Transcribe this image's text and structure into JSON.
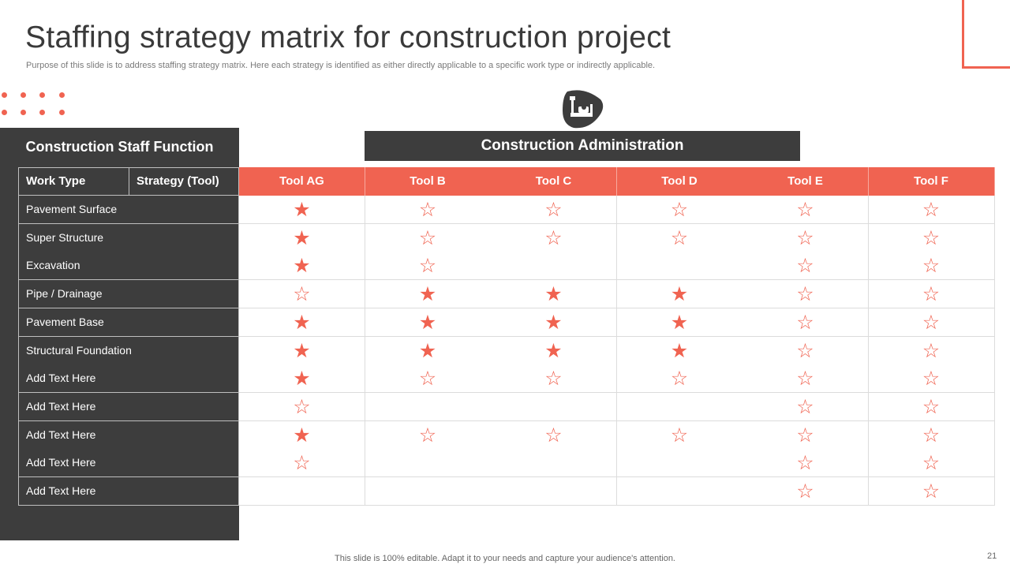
{
  "slide": {
    "title": "Staffing strategy matrix for construction project",
    "subtitle": "Purpose of this slide is to address staffing strategy matrix. Here each strategy is identified as either directly applicable to a specific work type  or indirectly applicable.",
    "footer": "This slide is 100% editable. Adapt it to your needs and capture your audience's attention.",
    "page_number": "21",
    "accent_color": "#f06351",
    "dark_color": "#3d3d3d"
  },
  "panel": {
    "title": "Construction Staff Function",
    "admin_title": "Construction  Administration",
    "logo_icon": "construction-tools-icon"
  },
  "matrix": {
    "col_work_type": "Work Type",
    "col_strategy": "Strategy (Tool)",
    "tools": [
      "Tool AG",
      "Tool B",
      "Tool C",
      "Tool D",
      "Tool E",
      "Tool F"
    ],
    "legend_marks": {
      "filled": "directly applicable",
      "outline": "indirectly applicable"
    },
    "rows": [
      {
        "label": "Pavement Surface",
        "marks": [
          "filled",
          "outline",
          "outline",
          "outline",
          "outline",
          "outline"
        ]
      },
      {
        "label": "Super Structure",
        "marks": [
          "filled",
          "outline",
          "outline",
          "outline",
          "outline",
          "outline"
        ]
      },
      {
        "label": "Excavation",
        "marks": [
          "filled",
          "outline",
          "none",
          "none",
          "outline",
          "outline"
        ]
      },
      {
        "label": "Pipe / Drainage",
        "marks": [
          "outline",
          "filled",
          "filled",
          "filled",
          "outline",
          "outline"
        ]
      },
      {
        "label": "Pavement Base",
        "marks": [
          "filled",
          "filled",
          "filled",
          "filled",
          "outline",
          "outline"
        ]
      },
      {
        "label": "Structural Foundation",
        "marks": [
          "filled",
          "filled",
          "filled",
          "filled",
          "outline",
          "outline"
        ]
      },
      {
        "label": "Add Text Here",
        "marks": [
          "filled",
          "outline",
          "outline",
          "outline",
          "outline",
          "outline"
        ]
      },
      {
        "label": "Add Text Here",
        "marks": [
          "outline",
          "none",
          "none",
          "none",
          "outline",
          "outline"
        ]
      },
      {
        "label": "Add Text Here",
        "marks": [
          "filled",
          "outline",
          "outline",
          "outline",
          "outline",
          "outline"
        ]
      },
      {
        "label": "Add Text Here",
        "marks": [
          "outline",
          "none",
          "none",
          "none",
          "outline",
          "outline"
        ]
      },
      {
        "label": "Add Text Here",
        "marks": [
          "none",
          "none",
          "none",
          "none",
          "outline",
          "outline"
        ]
      }
    ]
  }
}
